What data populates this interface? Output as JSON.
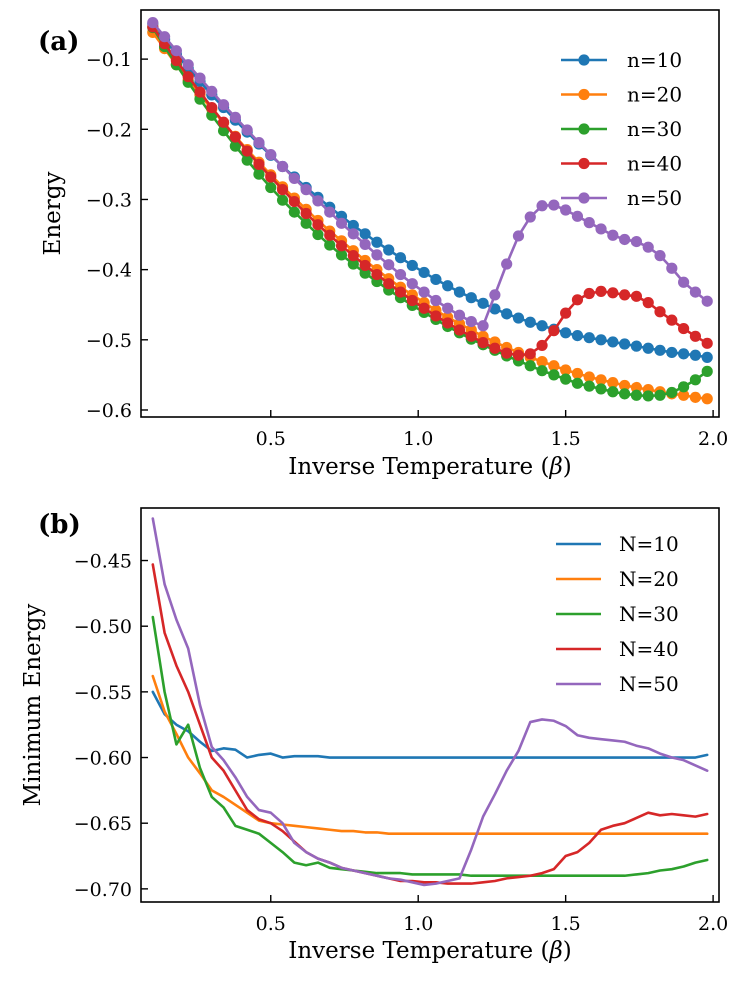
{
  "chart_data": [
    {
      "panel_label": "(a)",
      "type": "line",
      "markers": "circle",
      "xlabel": "Inverse Temperature (",
      "xlabel_symbol": "β",
      "xlabel_close": ")",
      "ylabel": "Energy",
      "xlim": [
        0.06,
        2.02
      ],
      "ylim": [
        -0.61,
        -0.03
      ],
      "xticks": [
        0.5,
        1.0,
        1.5,
        2.0
      ],
      "xtick_labels": [
        "0.5",
        "1.0",
        "1.5",
        "2.0"
      ],
      "yticks": [
        -0.1,
        -0.2,
        -0.3,
        -0.4,
        -0.5,
        -0.6
      ],
      "ytick_labels": [
        "−0.1",
        "−0.2",
        "−0.3",
        "−0.4",
        "−0.5",
        "−0.6"
      ],
      "legend_position": "top-right",
      "x": [
        0.1,
        0.14,
        0.18,
        0.22,
        0.26,
        0.3,
        0.34,
        0.38,
        0.42,
        0.46,
        0.5,
        0.54,
        0.58,
        0.62,
        0.66,
        0.7,
        0.74,
        0.78,
        0.82,
        0.86,
        0.9,
        0.94,
        0.98,
        1.02,
        1.06,
        1.1,
        1.14,
        1.18,
        1.22,
        1.26,
        1.3,
        1.34,
        1.38,
        1.42,
        1.46,
        1.5,
        1.54,
        1.58,
        1.62,
        1.66,
        1.7,
        1.74,
        1.78,
        1.82,
        1.86,
        1.9,
        1.94,
        1.98
      ],
      "series": [
        {
          "name": "n=10",
          "color": "#1f77b4",
          "values": [
            -0.05,
            -0.072,
            -0.093,
            -0.113,
            -0.132,
            -0.151,
            -0.169,
            -0.187,
            -0.204,
            -0.221,
            -0.237,
            -0.253,
            -0.268,
            -0.283,
            -0.297,
            -0.311,
            -0.324,
            -0.337,
            -0.349,
            -0.361,
            -0.372,
            -0.383,
            -0.394,
            -0.404,
            -0.414,
            -0.423,
            -0.432,
            -0.44,
            -0.448,
            -0.456,
            -0.463,
            -0.469,
            -0.475,
            -0.48,
            -0.485,
            -0.49,
            -0.494,
            -0.497,
            -0.5,
            -0.503,
            -0.506,
            -0.509,
            -0.512,
            -0.515,
            -0.518,
            -0.52,
            -0.522,
            -0.525
          ]
        },
        {
          "name": "n=20",
          "color": "#ff7f0e",
          "values": [
            -0.062,
            -0.085,
            -0.108,
            -0.13,
            -0.151,
            -0.171,
            -0.191,
            -0.21,
            -0.229,
            -0.247,
            -0.265,
            -0.282,
            -0.298,
            -0.314,
            -0.33,
            -0.345,
            -0.359,
            -0.373,
            -0.387,
            -0.4,
            -0.413,
            -0.425,
            -0.436,
            -0.447,
            -0.458,
            -0.468,
            -0.477,
            -0.486,
            -0.495,
            -0.503,
            -0.511,
            -0.518,
            -0.525,
            -0.531,
            -0.537,
            -0.543,
            -0.548,
            -0.553,
            -0.557,
            -0.561,
            -0.565,
            -0.568,
            -0.571,
            -0.574,
            -0.577,
            -0.579,
            -0.582,
            -0.584
          ]
        },
        {
          "name": "n=30",
          "color": "#2ca02c",
          "values": [
            -0.055,
            -0.082,
            -0.108,
            -0.133,
            -0.157,
            -0.18,
            -0.202,
            -0.224,
            -0.244,
            -0.264,
            -0.283,
            -0.301,
            -0.318,
            -0.334,
            -0.35,
            -0.365,
            -0.379,
            -0.392,
            -0.405,
            -0.417,
            -0.429,
            -0.44,
            -0.451,
            -0.461,
            -0.471,
            -0.481,
            -0.49,
            -0.499,
            -0.507,
            -0.515,
            -0.523,
            -0.53,
            -0.537,
            -0.544,
            -0.55,
            -0.556,
            -0.562,
            -0.566,
            -0.57,
            -0.574,
            -0.577,
            -0.579,
            -0.58,
            -0.579,
            -0.575,
            -0.567,
            -0.557,
            -0.545
          ]
        },
        {
          "name": "n=40",
          "color": "#d62728",
          "values": [
            -0.054,
            -0.078,
            -0.102,
            -0.125,
            -0.147,
            -0.169,
            -0.19,
            -0.211,
            -0.231,
            -0.25,
            -0.268,
            -0.286,
            -0.303,
            -0.32,
            -0.336,
            -0.351,
            -0.366,
            -0.38,
            -0.394,
            -0.407,
            -0.42,
            -0.432,
            -0.444,
            -0.455,
            -0.466,
            -0.476,
            -0.486,
            -0.495,
            -0.504,
            -0.512,
            -0.519,
            -0.522,
            -0.52,
            -0.508,
            -0.487,
            -0.462,
            -0.443,
            -0.434,
            -0.431,
            -0.433,
            -0.436,
            -0.438,
            -0.447,
            -0.46,
            -0.472,
            -0.484,
            -0.495,
            -0.505
          ]
        },
        {
          "name": "n=50",
          "color": "#9467bd",
          "values": [
            -0.048,
            -0.068,
            -0.088,
            -0.108,
            -0.127,
            -0.146,
            -0.165,
            -0.183,
            -0.201,
            -0.219,
            -0.236,
            -0.253,
            -0.27,
            -0.286,
            -0.302,
            -0.318,
            -0.334,
            -0.349,
            -0.364,
            -0.379,
            -0.393,
            -0.407,
            -0.42,
            -0.432,
            -0.444,
            -0.455,
            -0.465,
            -0.474,
            -0.48,
            -0.436,
            -0.392,
            -0.352,
            -0.325,
            -0.309,
            -0.308,
            -0.315,
            -0.324,
            -0.333,
            -0.342,
            -0.351,
            -0.357,
            -0.36,
            -0.368,
            -0.38,
            -0.398,
            -0.418,
            -0.432,
            -0.445
          ]
        }
      ]
    },
    {
      "panel_label": "(b)",
      "type": "line",
      "xlabel": "Inverse Temperature (",
      "xlabel_symbol": "β",
      "xlabel_close": ")",
      "ylabel": "Minimum Energy",
      "xlim": [
        0.06,
        2.02
      ],
      "ylim": [
        -0.71,
        -0.41
      ],
      "xticks": [
        0.5,
        1.0,
        1.5,
        2.0
      ],
      "xtick_labels": [
        "0.5",
        "1.0",
        "1.5",
        "2.0"
      ],
      "yticks": [
        -0.45,
        -0.5,
        -0.55,
        -0.6,
        -0.65,
        -0.7
      ],
      "ytick_labels": [
        "−0.45",
        "−0.50",
        "−0.55",
        "−0.60",
        "−0.65",
        "−0.70"
      ],
      "legend_position": "top-right",
      "x": [
        0.1,
        0.14,
        0.18,
        0.22,
        0.26,
        0.3,
        0.34,
        0.38,
        0.42,
        0.46,
        0.5,
        0.54,
        0.58,
        0.62,
        0.66,
        0.7,
        0.74,
        0.78,
        0.82,
        0.86,
        0.9,
        0.94,
        0.98,
        1.02,
        1.06,
        1.1,
        1.14,
        1.18,
        1.22,
        1.26,
        1.3,
        1.34,
        1.38,
        1.42,
        1.46,
        1.5,
        1.54,
        1.58,
        1.62,
        1.66,
        1.7,
        1.74,
        1.78,
        1.82,
        1.86,
        1.9,
        1.94,
        1.98
      ],
      "series": [
        {
          "name": "N=10",
          "color": "#1f77b4",
          "values": [
            -0.55,
            -0.567,
            -0.575,
            -0.58,
            -0.588,
            -0.595,
            -0.593,
            -0.594,
            -0.6,
            -0.598,
            -0.597,
            -0.6,
            -0.599,
            -0.599,
            -0.599,
            -0.6,
            -0.6,
            -0.6,
            -0.6,
            -0.6,
            -0.6,
            -0.6,
            -0.6,
            -0.6,
            -0.6,
            -0.6,
            -0.6,
            -0.6,
            -0.6,
            -0.6,
            -0.6,
            -0.6,
            -0.6,
            -0.6,
            -0.6,
            -0.6,
            -0.6,
            -0.6,
            -0.6,
            -0.6,
            -0.6,
            -0.6,
            -0.6,
            -0.6,
            -0.6,
            -0.6,
            -0.6,
            -0.598
          ]
        },
        {
          "name": "N=20",
          "color": "#ff7f0e",
          "values": [
            -0.538,
            -0.565,
            -0.582,
            -0.6,
            -0.612,
            -0.625,
            -0.63,
            -0.636,
            -0.642,
            -0.648,
            -0.65,
            -0.651,
            -0.652,
            -0.653,
            -0.654,
            -0.655,
            -0.656,
            -0.656,
            -0.657,
            -0.657,
            -0.658,
            -0.658,
            -0.658,
            -0.658,
            -0.658,
            -0.658,
            -0.658,
            -0.658,
            -0.658,
            -0.658,
            -0.658,
            -0.658,
            -0.658,
            -0.658,
            -0.658,
            -0.658,
            -0.658,
            -0.658,
            -0.658,
            -0.658,
            -0.658,
            -0.658,
            -0.658,
            -0.658,
            -0.658,
            -0.658,
            -0.658,
            -0.658
          ]
        },
        {
          "name": "N=30",
          "color": "#2ca02c",
          "values": [
            -0.493,
            -0.55,
            -0.59,
            -0.575,
            -0.608,
            -0.63,
            -0.638,
            -0.652,
            -0.655,
            -0.658,
            -0.665,
            -0.672,
            -0.68,
            -0.682,
            -0.68,
            -0.684,
            -0.685,
            -0.686,
            -0.687,
            -0.688,
            -0.688,
            -0.688,
            -0.689,
            -0.689,
            -0.689,
            -0.689,
            -0.689,
            -0.69,
            -0.69,
            -0.69,
            -0.69,
            -0.69,
            -0.69,
            -0.69,
            -0.69,
            -0.69,
            -0.69,
            -0.69,
            -0.69,
            -0.69,
            -0.69,
            -0.689,
            -0.688,
            -0.686,
            -0.685,
            -0.683,
            -0.68,
            -0.678
          ]
        },
        {
          "name": "N=40",
          "color": "#d62728",
          "values": [
            -0.453,
            -0.505,
            -0.53,
            -0.55,
            -0.575,
            -0.6,
            -0.61,
            -0.625,
            -0.64,
            -0.647,
            -0.65,
            -0.656,
            -0.664,
            -0.672,
            -0.677,
            -0.68,
            -0.684,
            -0.686,
            -0.688,
            -0.69,
            -0.692,
            -0.694,
            -0.694,
            -0.695,
            -0.695,
            -0.696,
            -0.696,
            -0.696,
            -0.695,
            -0.694,
            -0.692,
            -0.691,
            -0.69,
            -0.688,
            -0.685,
            -0.675,
            -0.672,
            -0.665,
            -0.655,
            -0.652,
            -0.65,
            -0.646,
            -0.642,
            -0.644,
            -0.643,
            -0.644,
            -0.645,
            -0.643
          ]
        },
        {
          "name": "N=50",
          "color": "#9467bd",
          "values": [
            -0.418,
            -0.468,
            -0.495,
            -0.517,
            -0.56,
            -0.592,
            -0.602,
            -0.615,
            -0.63,
            -0.64,
            -0.642,
            -0.65,
            -0.665,
            -0.672,
            -0.677,
            -0.68,
            -0.684,
            -0.686,
            -0.688,
            -0.69,
            -0.692,
            -0.693,
            -0.695,
            -0.697,
            -0.696,
            -0.694,
            -0.692,
            -0.67,
            -0.645,
            -0.628,
            -0.61,
            -0.595,
            -0.573,
            -0.571,
            -0.572,
            -0.576,
            -0.583,
            -0.585,
            -0.586,
            -0.587,
            -0.588,
            -0.591,
            -0.593,
            -0.597,
            -0.6,
            -0.602,
            -0.606,
            -0.61
          ]
        }
      ]
    }
  ]
}
